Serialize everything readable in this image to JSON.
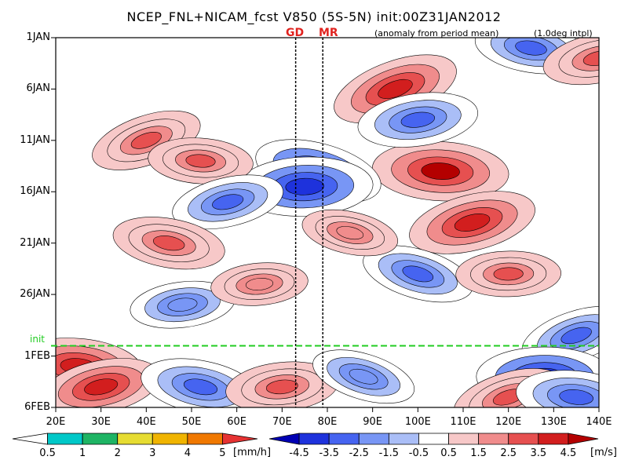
{
  "title": "NCEP_FNL+NICAM_fcst V850 (5S-5N) init:00Z31JAN2012",
  "subtitle_left": "(anomaly from period mean)",
  "subtitle_right": "(1.0deg intpl)",
  "markers": [
    {
      "label": "GD",
      "lon": 73
    },
    {
      "label": "MR",
      "lon": 79
    }
  ],
  "init_label": "init",
  "chart_data": {
    "type": "heatmap",
    "title": "NCEP_FNL+NICAM_fcst V850 (5S-5N) init:00Z31JAN2012",
    "xlabel": "",
    "ylabel": "",
    "xlim": [
      20,
      140
    ],
    "ylim_days": [
      1,
      37
    ],
    "x_ticks": [
      "20E",
      "30E",
      "40E",
      "50E",
      "60E",
      "70E",
      "80E",
      "90E",
      "100E",
      "110E",
      "120E",
      "130E",
      "140E"
    ],
    "x_tick_values": [
      20,
      30,
      40,
      50,
      60,
      70,
      80,
      90,
      100,
      110,
      120,
      130,
      140
    ],
    "y_ticks": [
      "1JAN",
      "6JAN",
      "11JAN",
      "16JAN",
      "21JAN",
      "26JAN",
      "1FEB",
      "6FEB"
    ],
    "y_tick_values": [
      1,
      6,
      11,
      16,
      21,
      26,
      32,
      37
    ],
    "init_day": 31,
    "wind_colorbar": {
      "labels": [
        "-4.5",
        "-3.5",
        "-2.5",
        "-1.5",
        "-0.5",
        "0.5",
        "1.5",
        "2.5",
        "3.5",
        "4.5"
      ],
      "colors": [
        "#0000b4",
        "#1e32dc",
        "#4664f0",
        "#7896f5",
        "#aabef7",
        "#ffffff",
        "#f7c8c8",
        "#f08c8c",
        "#e65050",
        "#d21e1e",
        "#b40000"
      ],
      "unit": "[m/s]"
    },
    "precip_colorbar": {
      "labels": [
        "0.5",
        "1",
        "2",
        "3",
        "4",
        "5"
      ],
      "colors": [
        "#ffffff",
        "#00c8c8",
        "#1eb464",
        "#e6dc32",
        "#f0b400",
        "#f07800",
        "#e63232"
      ],
      "unit": "[mm/h]"
    },
    "blobs": [
      {
        "lon": 95,
        "day": 6,
        "value": 4
      },
      {
        "lon": 105,
        "day": 14,
        "value": 4.5
      },
      {
        "lon": 112,
        "day": 19,
        "value": 4
      },
      {
        "lon": 125,
        "day": 2,
        "value": -3
      },
      {
        "lon": 100,
        "day": 9,
        "value": -3.5
      },
      {
        "lon": 78,
        "day": 14,
        "value": -4
      },
      {
        "lon": 75,
        "day": 15.5,
        "value": -4.5
      },
      {
        "lon": 40,
        "day": 11,
        "value": 3
      },
      {
        "lon": 52,
        "day": 13,
        "value": 2.5
      },
      {
        "lon": 58,
        "day": 17,
        "value": -3
      },
      {
        "lon": 45,
        "day": 21,
        "value": 3
      },
      {
        "lon": 48,
        "day": 27,
        "value": -2.5
      },
      {
        "lon": 100,
        "day": 24,
        "value": -3
      },
      {
        "lon": 120,
        "day": 24,
        "value": 2.5
      },
      {
        "lon": 135,
        "day": 30,
        "value": -3
      },
      {
        "lon": 25,
        "day": 33,
        "value": 4
      },
      {
        "lon": 30,
        "day": 35,
        "value": 3.5
      },
      {
        "lon": 52,
        "day": 35,
        "value": -3.5
      },
      {
        "lon": 70,
        "day": 35,
        "value": 3
      },
      {
        "lon": 88,
        "day": 34,
        "value": -2.5
      },
      {
        "lon": 128,
        "day": 34,
        "value": -4.5
      },
      {
        "lon": 120,
        "day": 36,
        "value": 3
      },
      {
        "lon": 135,
        "day": 36,
        "value": -3.5
      },
      {
        "lon": 140,
        "day": 3,
        "value": 3
      },
      {
        "lon": 85,
        "day": 20,
        "value": 2
      },
      {
        "lon": 65,
        "day": 25,
        "value": 2
      }
    ]
  }
}
